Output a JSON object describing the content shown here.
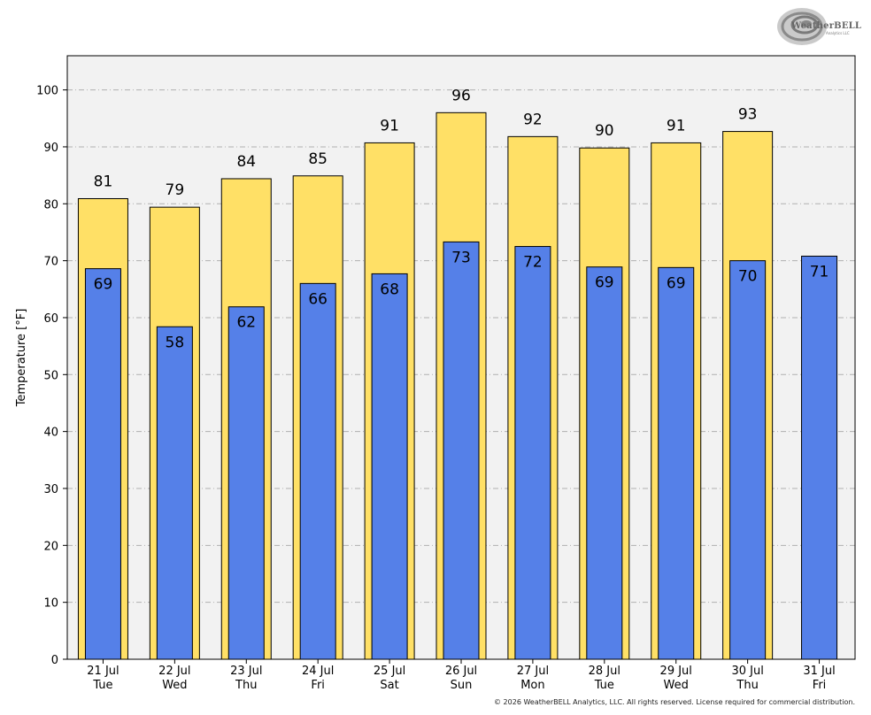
{
  "logo": {
    "text": "WeatherBELL",
    "subtext": "Analytics LLC"
  },
  "copyright": "© 2026 WeatherBELL Analytics, LLC. All rights reserved. License required for commercial distribution.",
  "chart_data": {
    "type": "bar",
    "title": "",
    "xlabel": "",
    "ylabel": "Temperature [°F]",
    "ylim": [
      0,
      106
    ],
    "yticks": [
      0,
      10,
      20,
      30,
      40,
      50,
      60,
      70,
      80,
      90,
      100
    ],
    "grid": true,
    "categories": [
      {
        "date": "21 Jul",
        "day": "Tue"
      },
      {
        "date": "22 Jul",
        "day": "Wed"
      },
      {
        "date": "23 Jul",
        "day": "Thu"
      },
      {
        "date": "24 Jul",
        "day": "Fri"
      },
      {
        "date": "25 Jul",
        "day": "Sat"
      },
      {
        "date": "26 Jul",
        "day": "Sun"
      },
      {
        "date": "27 Jul",
        "day": "Mon"
      },
      {
        "date": "28 Jul",
        "day": "Tue"
      },
      {
        "date": "29 Jul",
        "day": "Wed"
      },
      {
        "date": "30 Jul",
        "day": "Thu"
      },
      {
        "date": "31 Jul",
        "day": "Fri"
      }
    ],
    "series": [
      {
        "color": "#ffe066",
        "values": [
          80.9,
          79.4,
          84.4,
          84.9,
          90.7,
          96.0,
          91.8,
          89.8,
          90.7,
          92.7,
          null
        ],
        "labels": [
          "81",
          "79",
          "84",
          "85",
          "91",
          "96",
          "92",
          "90",
          "91",
          "93",
          null
        ]
      },
      {
        "color": "#5580e8",
        "values": [
          68.6,
          58.4,
          61.9,
          66.0,
          67.7,
          73.3,
          72.5,
          68.9,
          68.8,
          70.0,
          70.8
        ],
        "labels": [
          "69",
          "58",
          "62",
          "66",
          "68",
          "73",
          "72",
          "69",
          "69",
          "70",
          "71"
        ]
      }
    ],
    "plot_background": "#f2f2f2"
  }
}
